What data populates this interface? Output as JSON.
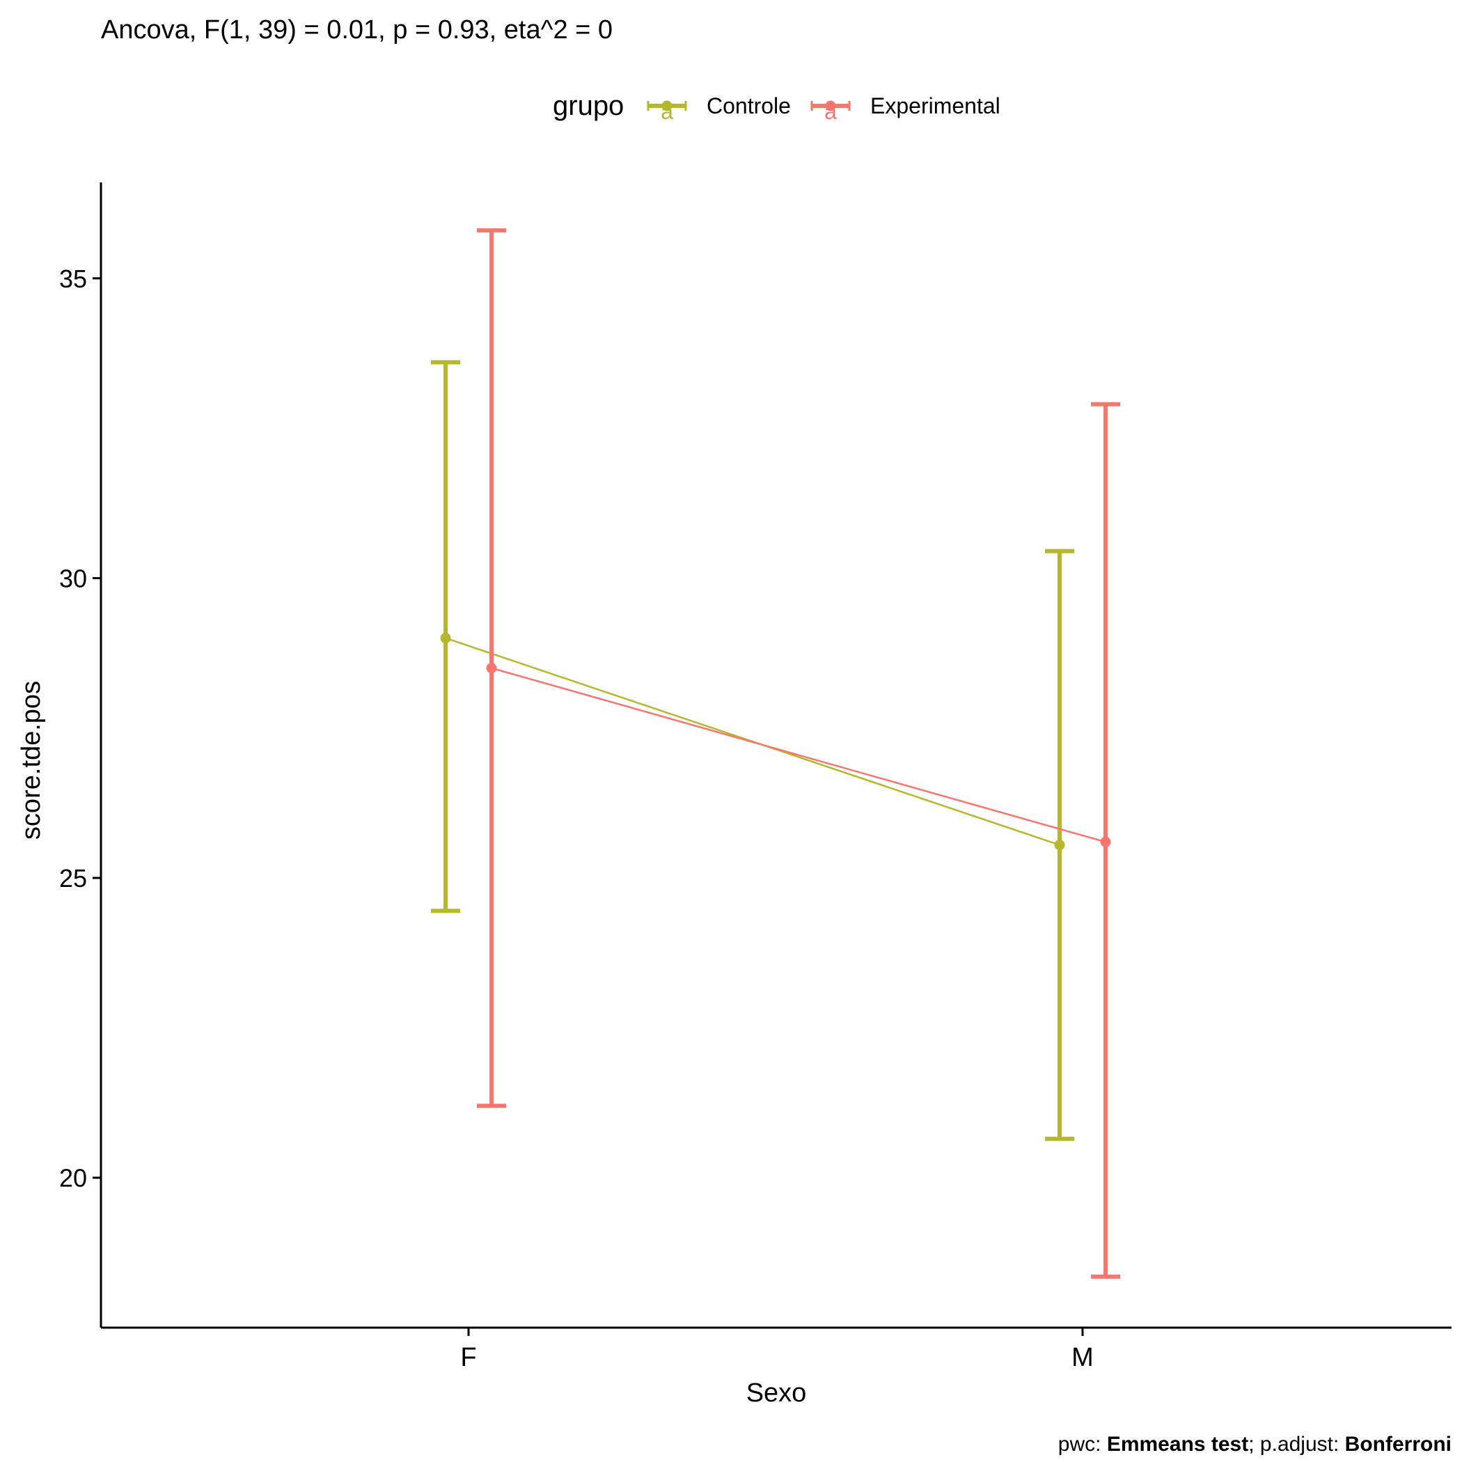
{
  "chart_data": {
    "type": "line",
    "title": "Ancova, F(1, 39) = 0.01, p = 0.93, eta^2 = 0",
    "xlabel": "Sexo",
    "ylabel": "score.tde.pos",
    "categories": [
      "F",
      "M"
    ],
    "ylim": [
      17.5,
      36.6
    ],
    "yticks": [
      20,
      25,
      30,
      35
    ],
    "grid": false,
    "legend": {
      "title": "grupo",
      "placement": "top",
      "key_glyph": "a"
    },
    "series": [
      {
        "name": "Controle",
        "color": "#B5B82A",
        "values": [
          29.0,
          25.55
        ],
        "lower": [
          24.45,
          20.65
        ],
        "upper": [
          33.6,
          30.45
        ]
      },
      {
        "name": "Experimental",
        "color": "#F8766D",
        "values": [
          28.5,
          25.6
        ],
        "lower": [
          21.2,
          18.35
        ],
        "upper": [
          35.8,
          32.9
        ]
      }
    ],
    "caption": {
      "pwc_label": "pwc: ",
      "pwc_value": "Emmeans test",
      "sep": "; ",
      "adjust_label": "p.adjust: ",
      "adjust_value": "Bonferroni"
    }
  }
}
